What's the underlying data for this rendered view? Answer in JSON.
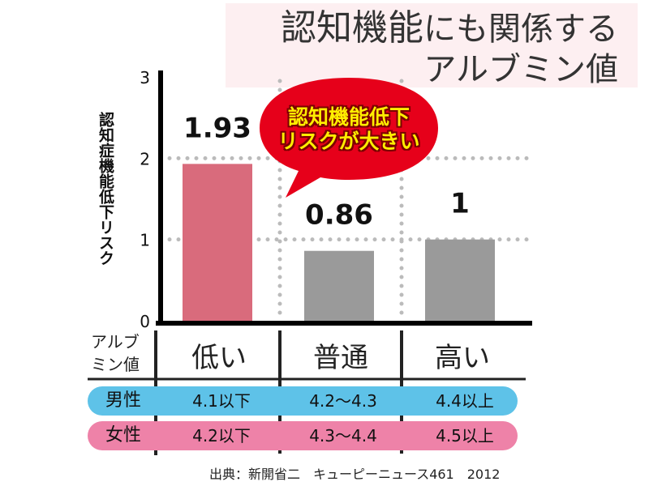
{
  "title": {
    "line1_kanji": "認知機能",
    "line1_rest": "にも関係する",
    "line2": "アルブミン値"
  },
  "chart_data": {
    "type": "bar",
    "categories": [
      "低い",
      "普通",
      "高い"
    ],
    "values": [
      1.93,
      0.86,
      1
    ],
    "value_labels": [
      "1.93",
      "0.86",
      "1"
    ],
    "ylabel": "認知症機能低下リスク",
    "yticks": [
      "0",
      "1",
      "2",
      "3"
    ],
    "ylim": [
      0,
      3
    ],
    "grid": "dotted",
    "bar_colors": [
      "#d96b7c",
      "#9a9a9a",
      "#9a9a9a"
    ]
  },
  "callout": {
    "line1": "認知機能低下",
    "line2": "リスクが大きい",
    "color": "#e6001a"
  },
  "table": {
    "header": {
      "line1": "アルブ",
      "line2": "ミン値"
    },
    "rows": [
      {
        "label": "男性",
        "color": "#5ec2e8",
        "cells": [
          "4.1以下",
          "4.2〜4.3",
          "4.4以上"
        ]
      },
      {
        "label": "女性",
        "color": "#ee82a8",
        "cells": [
          "4.2以下",
          "4.3〜4.4",
          "4.5以上"
        ]
      }
    ]
  },
  "source": "出典：新開省二　キューピーニュース461　2012"
}
